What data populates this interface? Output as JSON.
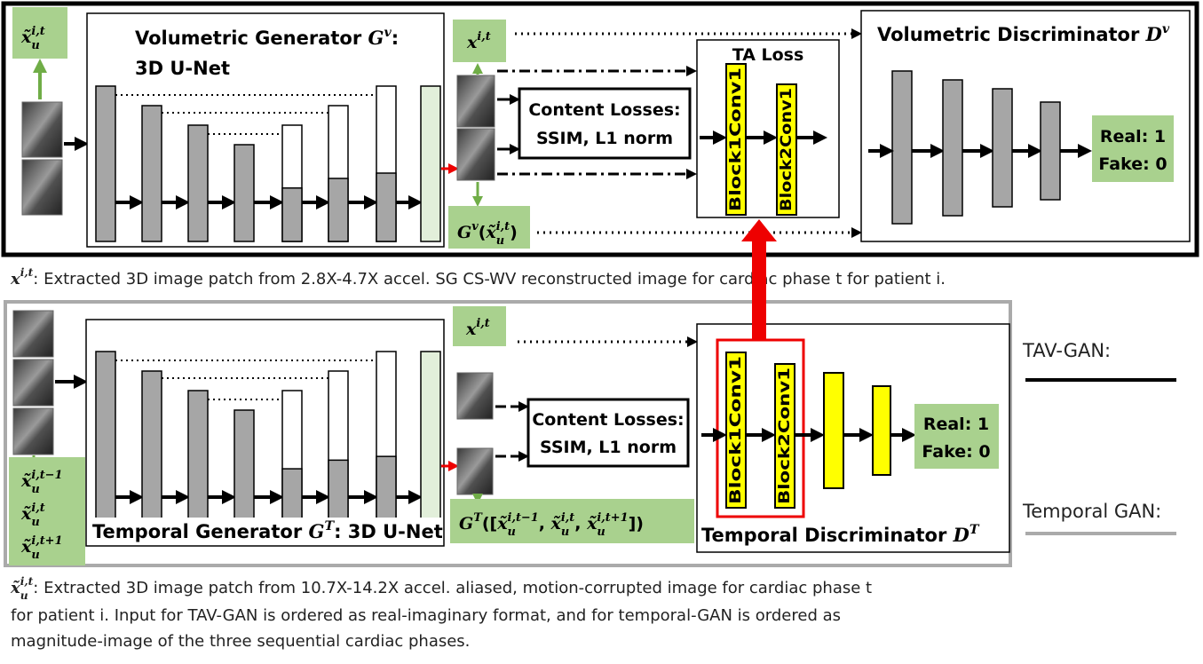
{
  "volumetric": {
    "input_label": [
      {
        "base": "x̃",
        "sub": "u",
        "sup": "i,t"
      }
    ],
    "generator_title": [
      {
        "text": "Volumetric Generator "
      },
      {
        "base": "G",
        "sup": "v"
      },
      {
        "text": ":"
      }
    ],
    "generator_subtitle": "3D U-Net",
    "target_label": [
      {
        "base": "x",
        "sup": "i,t"
      }
    ],
    "output_label": [
      {
        "base": "G",
        "sup": "v"
      },
      {
        "text": "("
      },
      {
        "base": "x̃",
        "sub": "u",
        "sup": "i,t"
      },
      {
        "text": ")"
      }
    ],
    "content_losses": [
      "Content Losses:",
      "SSIM, L1 norm"
    ],
    "ta_loss": "TA Loss",
    "blocks": [
      "Block1Conv1",
      "Block2Conv1"
    ],
    "discriminator_title": [
      {
        "text": "Volumetric Discriminator "
      },
      {
        "base": "D",
        "sup": "v"
      }
    ],
    "decision": [
      "Real: 1",
      "Fake: 0"
    ]
  },
  "caption_volumetric": [
    {
      "base": "x",
      "sup": "i,t"
    },
    {
      "text": ": Extracted 3D image patch from 2.8X-4.7X accel. SG CS-WV reconstructed image for cardiac phase t for  patient i."
    }
  ],
  "temporal": {
    "input_labels": [
      [
        {
          "base": "x̃",
          "sub": "u",
          "sup": "i,t−1"
        }
      ],
      [
        {
          "base": "x̃",
          "sub": "u",
          "sup": "i,t"
        }
      ],
      [
        {
          "base": "x̃",
          "sub": "u",
          "sup": "i,t+1"
        }
      ]
    ],
    "generator_title": [
      {
        "text": "Temporal Generator "
      },
      {
        "base": "G",
        "sup": "T"
      },
      {
        "text": ": 3D U-Net"
      }
    ],
    "target_label": [
      {
        "base": "x",
        "sup": "i,t"
      }
    ],
    "output_label": [
      {
        "base": "G",
        "sup": "T"
      },
      {
        "text": "(["
      },
      {
        "base": "x̃",
        "sub": "u",
        "sup": "i,t−1"
      },
      {
        "text": ", "
      },
      {
        "base": "x̃",
        "sub": "u",
        "sup": "i,t"
      },
      {
        "text": ", "
      },
      {
        "base": "x̃",
        "sub": "u",
        "sup": "i,t+1"
      },
      {
        "text": "])"
      }
    ],
    "content_losses": [
      "Content Losses:",
      "SSIM, L1 norm"
    ],
    "blocks": [
      "Block1Conv1",
      "Block2Conv1"
    ],
    "discriminator_title": [
      {
        "text": "Temporal Discriminator "
      },
      {
        "base": "D",
        "sup": "T"
      }
    ],
    "decision": [
      "Real: 1",
      "Fake: 0"
    ]
  },
  "legend": [
    "TAV-GAN:",
    "Temporal GAN:"
  ],
  "caption_temporal": [
    [
      {
        "base": "x̃",
        "sub": "u",
        "sup": "i,t"
      },
      {
        "text": ": Extracted 3D image patch from 10.7X-14.2X accel. aliased, motion-corrupted image for cardiac phase t"
      }
    ],
    "for  patient i. Input for TAV-GAN is ordered as real-imaginary format, and for temporal-GAN is ordered as",
    "magnitude-image of the three sequential cardiac phases."
  ]
}
